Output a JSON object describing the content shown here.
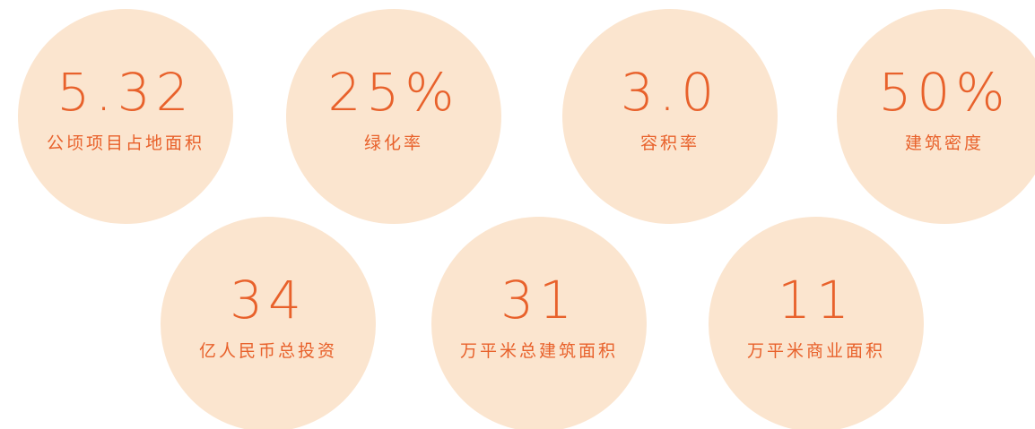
{
  "items": [
    {
      "value": "5.32",
      "label": "公顷项目占地面积"
    },
    {
      "value": "25%",
      "label": "绿化率"
    },
    {
      "value": "3.0",
      "label": "容积率"
    },
    {
      "value": "50%",
      "label": "建筑密度"
    },
    {
      "value": "34",
      "label": "亿人民币总投资"
    },
    {
      "value": "31",
      "label": "万平米总建筑面积"
    },
    {
      "value": "11",
      "label": "万平米商业面积"
    }
  ]
}
